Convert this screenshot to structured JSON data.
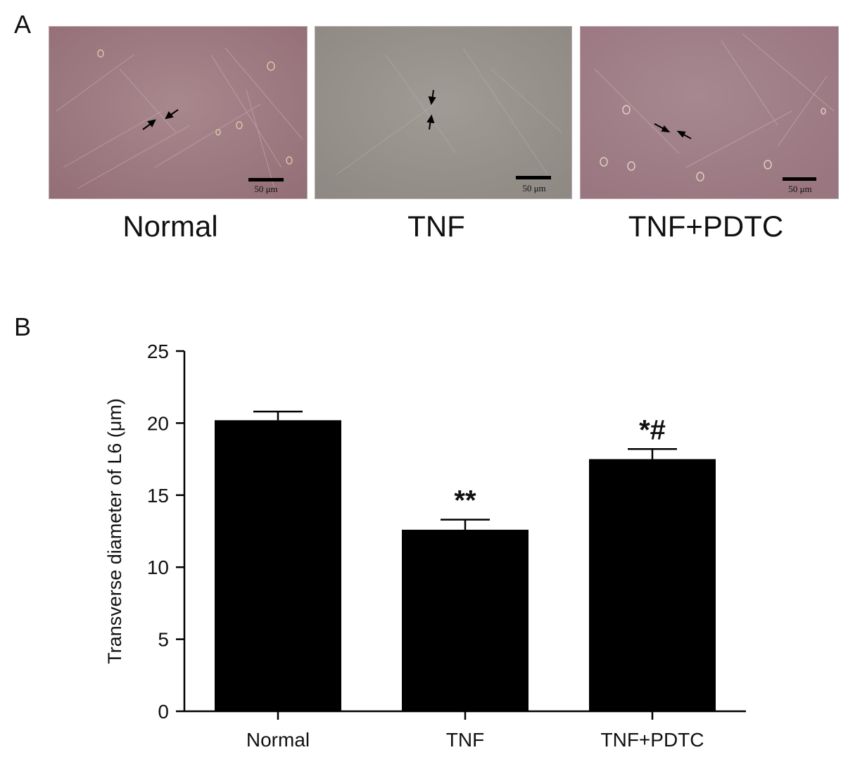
{
  "panel_a": {
    "letter": "A",
    "images": [
      {
        "label": "Normal",
        "scale": "50 μm",
        "tint": "#9e7d84"
      },
      {
        "label": "TNF",
        "scale": "50 μm",
        "tint": "#9a948e"
      },
      {
        "label": "TNF+PDTC",
        "scale": "50 μm",
        "tint": "#a3808a"
      }
    ]
  },
  "panel_b": {
    "letter": "B"
  },
  "chart_data": {
    "type": "bar",
    "categories": [
      "Normal",
      "TNF",
      "TNF+PDTC"
    ],
    "values": [
      20.2,
      12.6,
      17.5
    ],
    "errors": [
      0.6,
      0.7,
      0.7
    ],
    "annotations": [
      "",
      "**",
      "*#"
    ],
    "ylabel": "Transverse diameter of L6 (μm)",
    "xlabel": "",
    "ylim": [
      0,
      25
    ],
    "yticks": [
      0,
      5,
      10,
      15,
      20,
      25
    ],
    "bar_color": "#000000",
    "grid": false
  }
}
